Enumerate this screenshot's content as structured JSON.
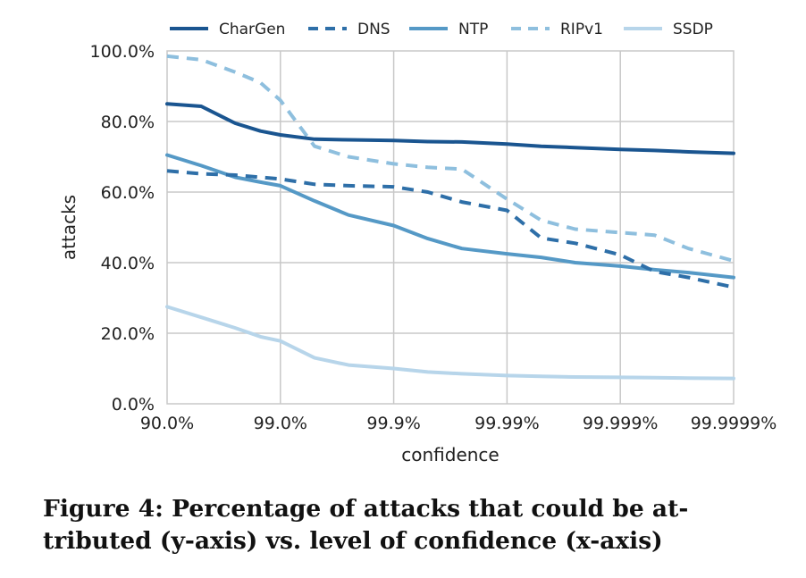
{
  "chart_data": {
    "type": "line",
    "title": "",
    "xlabel": "confidence",
    "ylabel": "attacks",
    "x_scale": "log of (1 - confidence)",
    "x_ticks": [
      "90.0%",
      "99.0%",
      "99.9%",
      "99.99%",
      "99.999%",
      "99.9999%"
    ],
    "y_ticks": [
      "0.0%",
      "20.0%",
      "40.0%",
      "60.0%",
      "80.0%",
      "100.0%"
    ],
    "ylim": [
      0,
      100
    ],
    "grid": true,
    "legend_position": "top",
    "series": [
      {
        "name": "CharGen",
        "style": "solid",
        "color": "#1a5590",
        "x": [
          "90.0%",
          "95.0%",
          "97.5%",
          "98.5%",
          "99.0%",
          "99.5%",
          "99.75%",
          "99.9%",
          "99.95%",
          "99.975%",
          "99.99%",
          "99.995%",
          "99.9975%",
          "99.999%",
          "99.9995%",
          "99.99975%",
          "99.9999%"
        ],
        "values": [
          85.0,
          84.3,
          79.5,
          77.3,
          76.2,
          75.0,
          74.8,
          74.6,
          74.3,
          74.2,
          73.6,
          73.0,
          72.6,
          72.1,
          71.8,
          71.4,
          71.0
        ]
      },
      {
        "name": "DNS",
        "style": "dashed",
        "color": "#2e6fa8",
        "x": [
          "90.0%",
          "95.0%",
          "97.5%",
          "98.5%",
          "99.0%",
          "99.5%",
          "99.75%",
          "99.9%",
          "99.95%",
          "99.975%",
          "99.99%",
          "99.995%",
          "99.9975%",
          "99.999%",
          "99.9995%",
          "99.99975%",
          "99.9999%"
        ],
        "values": [
          66.0,
          65.2,
          64.8,
          64.2,
          63.7,
          62.2,
          61.8,
          61.5,
          60.0,
          57.2,
          54.8,
          47.0,
          45.5,
          42.2,
          37.5,
          35.8,
          33.0
        ]
      },
      {
        "name": "NTP",
        "style": "solid",
        "color": "#5599c6",
        "x": [
          "90.0%",
          "95.0%",
          "97.5%",
          "98.5%",
          "99.0%",
          "99.5%",
          "99.75%",
          "99.9%",
          "99.95%",
          "99.975%",
          "99.99%",
          "99.995%",
          "99.9975%",
          "99.999%",
          "99.9995%",
          "99.99975%",
          "99.9999%"
        ],
        "values": [
          70.5,
          67.5,
          64.2,
          62.8,
          61.8,
          57.5,
          53.5,
          50.5,
          46.8,
          44.0,
          42.5,
          41.5,
          40.0,
          39.0,
          38.0,
          37.2,
          35.8
        ]
      },
      {
        "name": "RIPv1",
        "style": "dashed",
        "color": "#8ebfde",
        "x": [
          "90.0%",
          "95.0%",
          "97.5%",
          "98.5%",
          "99.0%",
          "99.5%",
          "99.75%",
          "99.9%",
          "99.95%",
          "99.975%",
          "99.99%",
          "99.995%",
          "99.9975%",
          "99.999%",
          "99.9995%",
          "99.99975%",
          "99.9999%"
        ],
        "values": [
          98.5,
          97.5,
          94.0,
          91.0,
          86.0,
          73.0,
          70.0,
          68.0,
          67.0,
          66.5,
          58.0,
          52.0,
          49.5,
          48.5,
          47.8,
          44.0,
          40.5
        ]
      },
      {
        "name": "SSDP",
        "style": "solid",
        "color": "#b7d5ea",
        "x": [
          "90.0%",
          "95.0%",
          "97.5%",
          "98.5%",
          "99.0%",
          "99.5%",
          "99.75%",
          "99.9%",
          "99.95%",
          "99.975%",
          "99.99%",
          "99.995%",
          "99.9975%",
          "99.999%",
          "99.9995%",
          "99.99975%",
          "99.9999%"
        ],
        "values": [
          27.5,
          24.5,
          21.5,
          19.0,
          17.8,
          13.0,
          11.0,
          10.0,
          9.0,
          8.5,
          8.0,
          7.8,
          7.6,
          7.5,
          7.4,
          7.3,
          7.2
        ]
      }
    ]
  },
  "caption": {
    "line1": "Figure 4: Percentage of attacks that could be at-",
    "line2": "tributed (y-axis) vs. level of confidence (x-axis)"
  }
}
